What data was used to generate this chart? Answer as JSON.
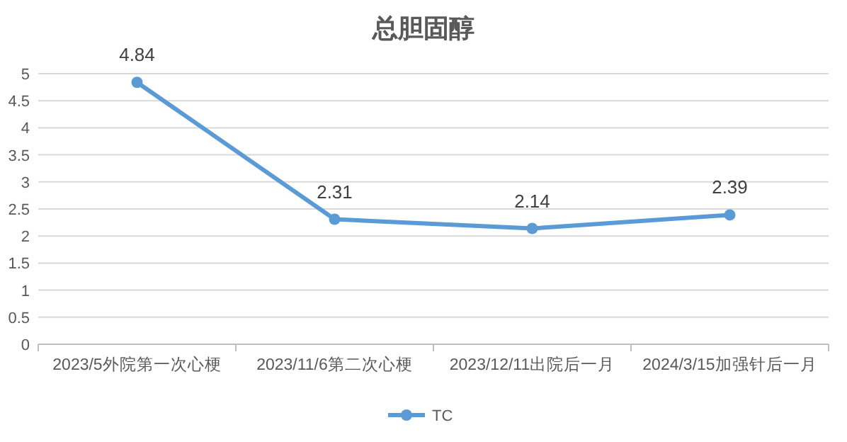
{
  "chart_data": {
    "type": "line",
    "title": "总胆固醇",
    "categories": [
      "2023/5外院第一次心梗",
      "2023/11/6第二次心梗",
      "2023/12/11出院后一月",
      "2024/3/15加强针后一月"
    ],
    "series": [
      {
        "name": "TC",
        "color": "#5b9bd5",
        "values": [
          4.84,
          2.31,
          2.14,
          2.39
        ]
      }
    ],
    "ylim": [
      0,
      5
    ],
    "yticks": [
      0,
      0.5,
      1,
      1.5,
      2,
      2.5,
      3,
      3.5,
      4,
      4.5,
      5
    ],
    "grid": "y",
    "legend": "bottom",
    "marker": "circle",
    "line_style": "solid",
    "data_labels": true
  }
}
